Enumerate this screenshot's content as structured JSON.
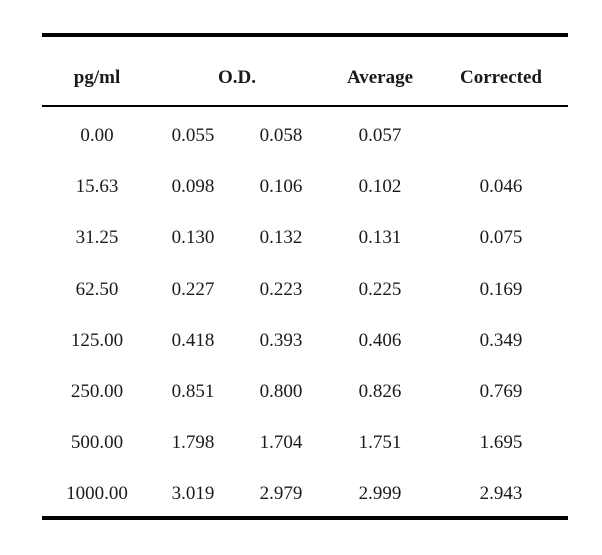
{
  "table": {
    "headers": {
      "conc": "pg/ml",
      "od": "O.D.",
      "average": "Average",
      "corrected": "Corrected"
    },
    "rows": [
      {
        "conc": "0.00",
        "od1": "0.055",
        "od2": "0.058",
        "average": "0.057",
        "corrected": ""
      },
      {
        "conc": "15.63",
        "od1": "0.098",
        "od2": "0.106",
        "average": "0.102",
        "corrected": "0.046"
      },
      {
        "conc": "31.25",
        "od1": "0.130",
        "od2": "0.132",
        "average": "0.131",
        "corrected": "0.075"
      },
      {
        "conc": "62.50",
        "od1": "0.227",
        "od2": "0.223",
        "average": "0.225",
        "corrected": "0.169"
      },
      {
        "conc": "125.00",
        "od1": "0.418",
        "od2": "0.393",
        "average": "0.406",
        "corrected": "0.349"
      },
      {
        "conc": "250.00",
        "od1": "0.851",
        "od2": "0.800",
        "average": "0.826",
        "corrected": "0.769"
      },
      {
        "conc": "500.00",
        "od1": "1.798",
        "od2": "1.704",
        "average": "1.751",
        "corrected": "1.695"
      },
      {
        "conc": "1000.00",
        "od1": "3.019",
        "od2": "2.979",
        "average": "2.999",
        "corrected": "2.943"
      }
    ]
  }
}
